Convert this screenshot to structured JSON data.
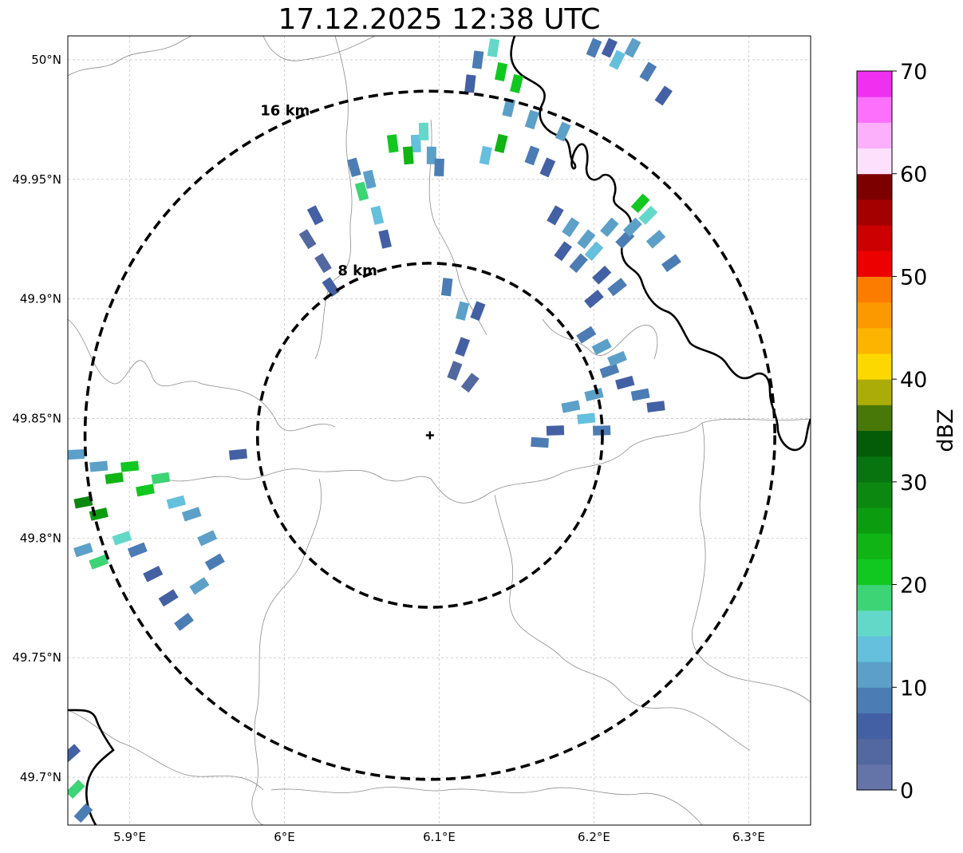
{
  "title": "17.12.2025 12:38 UTC",
  "map": {
    "lon_range": [
      5.86,
      6.34
    ],
    "lat_range": [
      49.68,
      50.01
    ],
    "lon_ticks": [
      {
        "value": 5.9,
        "label": "5.9°E"
      },
      {
        "value": 6.0,
        "label": "6°E"
      },
      {
        "value": 6.1,
        "label": "6.1°E"
      },
      {
        "value": 6.2,
        "label": "6.2°E"
      },
      {
        "value": 6.3,
        "label": "6.3°E"
      }
    ],
    "lat_ticks": [
      {
        "value": 50.0,
        "label": "50°N"
      },
      {
        "value": 49.95,
        "label": "49.95°N"
      },
      {
        "value": 49.9,
        "label": "49.9°N"
      },
      {
        "value": 49.85,
        "label": "49.85°N"
      },
      {
        "value": 49.8,
        "label": "49.8°N"
      },
      {
        "value": 49.75,
        "label": "49.75°N"
      },
      {
        "value": 49.7,
        "label": "49.7°N"
      }
    ],
    "radar_site": {
      "lon": 6.094,
      "lat": 49.843
    },
    "rings": [
      {
        "radius_km": 8,
        "label": "8 km"
      },
      {
        "radius_km": 16,
        "label": "16 km"
      }
    ]
  },
  "colorbar": {
    "label": "dBZ",
    "min": 0,
    "max": 70,
    "ticks": [
      {
        "value": 0,
        "label": "0"
      },
      {
        "value": 10,
        "label": "10"
      },
      {
        "value": 20,
        "label": "20"
      },
      {
        "value": 30,
        "label": "30"
      },
      {
        "value": 40,
        "label": "40"
      },
      {
        "value": 50,
        "label": "50"
      },
      {
        "value": 60,
        "label": "60"
      },
      {
        "value": 70,
        "label": "70"
      }
    ],
    "colors": [
      "#6474a8",
      "#5468a0",
      "#4460a4",
      "#4c7cb4",
      "#5ca0c8",
      "#64c0dc",
      "#64d8c8",
      "#3cd474",
      "#10c820",
      "#10b414",
      "#0c9c10",
      "#0c8810",
      "#087410",
      "#045c08",
      "#487808",
      "#acac08",
      "#fcd800",
      "#fcb400",
      "#fc9800",
      "#fc7c00",
      "#ec0000",
      "#cc0000",
      "#a40000",
      "#7c0000",
      "#fce0fc",
      "#fcb0fc",
      "#fc70fc",
      "#f030f0"
    ]
  },
  "echoes": [
    {
      "lon": 6.135,
      "lat": 50.005,
      "dbz": 15
    },
    {
      "lon": 6.14,
      "lat": 49.995,
      "dbz": 20
    },
    {
      "lon": 6.15,
      "lat": 49.99,
      "dbz": 22
    },
    {
      "lon": 6.145,
      "lat": 49.98,
      "dbz": 12
    },
    {
      "lon": 6.16,
      "lat": 49.975,
      "dbz": 10
    },
    {
      "lon": 6.14,
      "lat": 49.965,
      "dbz": 24
    },
    {
      "lon": 6.13,
      "lat": 49.96,
      "dbz": 14
    },
    {
      "lon": 6.16,
      "lat": 49.96,
      "dbz": 8
    },
    {
      "lon": 6.17,
      "lat": 49.955,
      "dbz": 6
    },
    {
      "lon": 6.125,
      "lat": 50.0,
      "dbz": 8
    },
    {
      "lon": 6.12,
      "lat": 49.99,
      "dbz": 6
    },
    {
      "lon": 6.18,
      "lat": 49.97,
      "dbz": 12
    },
    {
      "lon": 6.2,
      "lat": 50.005,
      "dbz": 8
    },
    {
      "lon": 6.215,
      "lat": 50.0,
      "dbz": 14
    },
    {
      "lon": 6.225,
      "lat": 50.005,
      "dbz": 12
    },
    {
      "lon": 6.235,
      "lat": 49.995,
      "dbz": 8
    },
    {
      "lon": 6.245,
      "lat": 49.985,
      "dbz": 6
    },
    {
      "lon": 6.21,
      "lat": 50.005,
      "dbz": 6
    },
    {
      "lon": 6.085,
      "lat": 49.965,
      "dbz": 14
    },
    {
      "lon": 6.08,
      "lat": 49.96,
      "dbz": 24
    },
    {
      "lon": 6.095,
      "lat": 49.96,
      "dbz": 12
    },
    {
      "lon": 6.09,
      "lat": 49.97,
      "dbz": 16
    },
    {
      "lon": 6.1,
      "lat": 49.955,
      "dbz": 8
    },
    {
      "lon": 6.07,
      "lat": 49.965,
      "dbz": 20
    },
    {
      "lon": 6.055,
      "lat": 49.95,
      "dbz": 12
    },
    {
      "lon": 6.05,
      "lat": 49.945,
      "dbz": 18
    },
    {
      "lon": 6.06,
      "lat": 49.935,
      "dbz": 14
    },
    {
      "lon": 6.065,
      "lat": 49.925,
      "dbz": 6
    },
    {
      "lon": 6.045,
      "lat": 49.955,
      "dbz": 8
    },
    {
      "lon": 6.02,
      "lat": 49.935,
      "dbz": 6
    },
    {
      "lon": 6.015,
      "lat": 49.925,
      "dbz": 4
    },
    {
      "lon": 6.025,
      "lat": 49.915,
      "dbz": 4
    },
    {
      "lon": 6.03,
      "lat": 49.905,
      "dbz": 6
    },
    {
      "lon": 6.175,
      "lat": 49.935,
      "dbz": 6
    },
    {
      "lon": 6.185,
      "lat": 49.93,
      "dbz": 10
    },
    {
      "lon": 6.195,
      "lat": 49.925,
      "dbz": 12
    },
    {
      "lon": 6.19,
      "lat": 49.915,
      "dbz": 8
    },
    {
      "lon": 6.2,
      "lat": 49.92,
      "dbz": 14
    },
    {
      "lon": 6.205,
      "lat": 49.91,
      "dbz": 6
    },
    {
      "lon": 6.215,
      "lat": 49.905,
      "dbz": 8
    },
    {
      "lon": 6.18,
      "lat": 49.92,
      "dbz": 6
    },
    {
      "lon": 6.21,
      "lat": 49.93,
      "dbz": 10
    },
    {
      "lon": 6.22,
      "lat": 49.925,
      "dbz": 8
    },
    {
      "lon": 6.23,
      "lat": 49.94,
      "dbz": 20
    },
    {
      "lon": 6.235,
      "lat": 49.935,
      "dbz": 16
    },
    {
      "lon": 6.225,
      "lat": 49.93,
      "dbz": 12
    },
    {
      "lon": 6.24,
      "lat": 49.925,
      "dbz": 10
    },
    {
      "lon": 6.25,
      "lat": 49.915,
      "dbz": 8
    },
    {
      "lon": 6.2,
      "lat": 49.9,
      "dbz": 6
    },
    {
      "lon": 6.195,
      "lat": 49.885,
      "dbz": 8
    },
    {
      "lon": 6.205,
      "lat": 49.88,
      "dbz": 10
    },
    {
      "lon": 6.21,
      "lat": 49.87,
      "dbz": 8
    },
    {
      "lon": 6.22,
      "lat": 49.865,
      "dbz": 6
    },
    {
      "lon": 6.23,
      "lat": 49.86,
      "dbz": 8
    },
    {
      "lon": 6.24,
      "lat": 49.855,
      "dbz": 6
    },
    {
      "lon": 6.2,
      "lat": 49.86,
      "dbz": 10
    },
    {
      "lon": 6.185,
      "lat": 49.855,
      "dbz": 12
    },
    {
      "lon": 6.195,
      "lat": 49.85,
      "dbz": 14
    },
    {
      "lon": 6.205,
      "lat": 49.845,
      "dbz": 8
    },
    {
      "lon": 6.175,
      "lat": 49.845,
      "dbz": 6
    },
    {
      "lon": 6.165,
      "lat": 49.84,
      "dbz": 8
    },
    {
      "lon": 6.215,
      "lat": 49.875,
      "dbz": 12
    },
    {
      "lon": 6.115,
      "lat": 49.88,
      "dbz": 6
    },
    {
      "lon": 6.11,
      "lat": 49.87,
      "dbz": 4
    },
    {
      "lon": 6.12,
      "lat": 49.865,
      "dbz": 4
    },
    {
      "lon": 6.105,
      "lat": 49.905,
      "dbz": 8
    },
    {
      "lon": 6.115,
      "lat": 49.895,
      "dbz": 10
    },
    {
      "lon": 6.125,
      "lat": 49.895,
      "dbz": 6
    },
    {
      "lon": 5.88,
      "lat": 49.83,
      "dbz": 12
    },
    {
      "lon": 5.89,
      "lat": 49.825,
      "dbz": 24
    },
    {
      "lon": 5.9,
      "lat": 49.83,
      "dbz": 20
    },
    {
      "lon": 5.87,
      "lat": 49.815,
      "dbz": 28
    },
    {
      "lon": 5.88,
      "lat": 49.81,
      "dbz": 26
    },
    {
      "lon": 5.91,
      "lat": 49.82,
      "dbz": 22
    },
    {
      "lon": 5.92,
      "lat": 49.825,
      "dbz": 18
    },
    {
      "lon": 5.93,
      "lat": 49.815,
      "dbz": 14
    },
    {
      "lon": 5.94,
      "lat": 49.81,
      "dbz": 12
    },
    {
      "lon": 5.95,
      "lat": 49.8,
      "dbz": 10
    },
    {
      "lon": 5.895,
      "lat": 49.8,
      "dbz": 16
    },
    {
      "lon": 5.905,
      "lat": 49.795,
      "dbz": 8
    },
    {
      "lon": 5.87,
      "lat": 49.795,
      "dbz": 12
    },
    {
      "lon": 5.88,
      "lat": 49.79,
      "dbz": 18
    },
    {
      "lon": 5.915,
      "lat": 49.785,
      "dbz": 6
    },
    {
      "lon": 5.925,
      "lat": 49.775,
      "dbz": 6
    },
    {
      "lon": 5.935,
      "lat": 49.765,
      "dbz": 8
    },
    {
      "lon": 5.945,
      "lat": 49.78,
      "dbz": 10
    },
    {
      "lon": 5.955,
      "lat": 49.79,
      "dbz": 8
    },
    {
      "lon": 5.865,
      "lat": 49.835,
      "dbz": 10
    },
    {
      "lon": 5.97,
      "lat": 49.835,
      "dbz": 6
    },
    {
      "lon": 5.862,
      "lat": 49.71,
      "dbz": 6
    },
    {
      "lon": 5.865,
      "lat": 49.695,
      "dbz": 18
    },
    {
      "lon": 5.87,
      "lat": 49.685,
      "dbz": 8
    }
  ]
}
